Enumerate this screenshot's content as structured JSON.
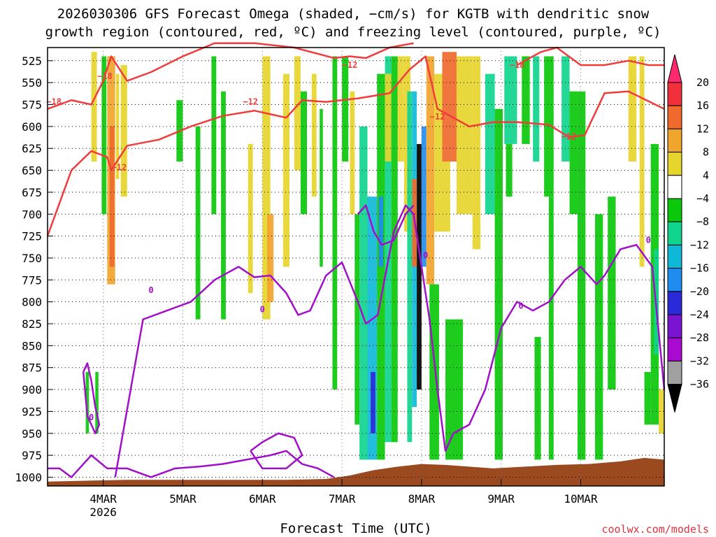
{
  "chart_data": {
    "type": "heatmap",
    "title_line1": "2026030306 GFS Forecast Omega (shaded, −cm/s) for KGTB with dendritic snow",
    "title_line2": "growth region (contoured, red, ºC) and freezing level (contoured, purple, ºC)",
    "xlabel": "Forecast Time (UTC)",
    "credit": "coolwx.com/models",
    "x_range_days": [
      0.0,
      7.75
    ],
    "x_ticks": [
      {
        "day": 0.7,
        "label": "4MAR",
        "sublabel": "2026"
      },
      {
        "day": 1.7,
        "label": "5MAR",
        "sublabel": ""
      },
      {
        "day": 2.7,
        "label": "6MAR",
        "sublabel": ""
      },
      {
        "day": 3.7,
        "label": "7MAR",
        "sublabel": ""
      },
      {
        "day": 4.7,
        "label": "8MAR",
        "sublabel": ""
      },
      {
        "day": 5.7,
        "label": "9MAR",
        "sublabel": ""
      },
      {
        "day": 6.7,
        "label": "10MAR",
        "sublabel": ""
      }
    ],
    "y_ticks": [
      525,
      550,
      575,
      600,
      625,
      650,
      675,
      700,
      725,
      750,
      775,
      800,
      825,
      850,
      875,
      900,
      925,
      950,
      975,
      1000
    ],
    "y_range_hpa": [
      510,
      1010
    ],
    "colorbar": {
      "levels": [
        20,
        16,
        12,
        8,
        4,
        -4,
        -8,
        -12,
        -16,
        -20,
        -24,
        -28,
        -32,
        -36
      ],
      "labels": [
        "20",
        "16",
        "12",
        "8",
        "4",
        "−4",
        "−8",
        "−12",
        "−16",
        "−20",
        "−24",
        "−28",
        "−32",
        "−36"
      ],
      "colors": [
        "#ff2a6e",
        "#f0303a",
        "#ef6a2c",
        "#f0a52c",
        "#e6d52c",
        "#ffffff",
        "#0ac80a",
        "#10d48e",
        "#10b8d8",
        "#1f8cf0",
        "#2a2ad8",
        "#7a14d0",
        "#a80ad0",
        "#a0a0a0",
        "#000000"
      ]
    },
    "omega_cells": [
      {
        "t0": 0.55,
        "t1": 0.62,
        "p0": 515,
        "p1": 640,
        "v": 6
      },
      {
        "t0": 0.62,
        "t1": 0.68,
        "p0": 520,
        "p1": 690,
        "v": 2
      },
      {
        "t0": 0.68,
        "t1": 0.74,
        "p0": 520,
        "p1": 700,
        "v": -6
      },
      {
        "t0": 0.75,
        "t1": 0.85,
        "p0": 520,
        "p1": 780,
        "v": 10
      },
      {
        "t0": 0.78,
        "t1": 0.84,
        "p0": 600,
        "p1": 760,
        "v": 14
      },
      {
        "t0": 0.86,
        "t1": 0.9,
        "p0": 540,
        "p1": 660,
        "v": 6
      },
      {
        "t0": 0.92,
        "t1": 1.0,
        "p0": 530,
        "p1": 680,
        "v": 6
      },
      {
        "t0": 0.48,
        "t1": 0.52,
        "p0": 880,
        "p1": 950,
        "v": -6
      },
      {
        "t0": 0.6,
        "t1": 0.64,
        "p0": 880,
        "p1": 950,
        "v": -6
      },
      {
        "t0": 1.62,
        "t1": 1.7,
        "p0": 570,
        "p1": 640,
        "v": -6
      },
      {
        "t0": 1.86,
        "t1": 1.92,
        "p0": 600,
        "p1": 820,
        "v": -6
      },
      {
        "t0": 2.06,
        "t1": 2.12,
        "p0": 520,
        "p1": 700,
        "v": -6
      },
      {
        "t0": 2.18,
        "t1": 2.24,
        "p0": 560,
        "p1": 820,
        "v": -6
      },
      {
        "t0": 2.52,
        "t1": 2.58,
        "p0": 620,
        "p1": 790,
        "v": 6
      },
      {
        "t0": 2.7,
        "t1": 2.8,
        "p0": 520,
        "p1": 820,
        "v": 6
      },
      {
        "t0": 2.76,
        "t1": 2.84,
        "p0": 700,
        "p1": 800,
        "v": 10
      },
      {
        "t0": 2.96,
        "t1": 3.04,
        "p0": 540,
        "p1": 760,
        "v": 6
      },
      {
        "t0": 3.1,
        "t1": 3.18,
        "p0": 520,
        "p1": 650,
        "v": 6
      },
      {
        "t0": 3.18,
        "t1": 3.26,
        "p0": 560,
        "p1": 700,
        "v": -6
      },
      {
        "t0": 3.32,
        "t1": 3.38,
        "p0": 540,
        "p1": 680,
        "v": 6
      },
      {
        "t0": 3.42,
        "t1": 3.46,
        "p0": 580,
        "p1": 760,
        "v": -6
      },
      {
        "t0": 3.58,
        "t1": 3.64,
        "p0": 520,
        "p1": 900,
        "v": -6
      },
      {
        "t0": 3.7,
        "t1": 3.78,
        "p0": 520,
        "p1": 640,
        "v": -6
      },
      {
        "t0": 3.8,
        "t1": 3.86,
        "p0": 560,
        "p1": 700,
        "v": 6
      },
      {
        "t0": 3.86,
        "t1": 3.92,
        "p0": 700,
        "p1": 940,
        "v": -6
      },
      {
        "t0": 3.92,
        "t1": 4.02,
        "p0": 600,
        "p1": 980,
        "v": -10
      },
      {
        "t0": 4.02,
        "t1": 4.14,
        "p0": 680,
        "p1": 980,
        "v": -14
      },
      {
        "t0": 4.06,
        "t1": 4.12,
        "p0": 880,
        "p1": 950,
        "v": -22
      },
      {
        "t0": 4.14,
        "t1": 4.24,
        "p0": 540,
        "p1": 980,
        "v": -6
      },
      {
        "t0": 4.16,
        "t1": 4.22,
        "p0": 680,
        "p1": 760,
        "v": -18
      },
      {
        "t0": 4.24,
        "t1": 4.32,
        "p0": 520,
        "p1": 960,
        "v": -10
      },
      {
        "t0": 4.24,
        "t1": 4.32,
        "p0": 540,
        "p1": 640,
        "v": 6
      },
      {
        "t0": 4.32,
        "t1": 4.4,
        "p0": 520,
        "p1": 960,
        "v": -6
      },
      {
        "t0": 4.4,
        "t1": 4.48,
        "p0": 520,
        "p1": 640,
        "v": 6
      },
      {
        "t0": 4.48,
        "t1": 4.56,
        "p0": 520,
        "p1": 720,
        "v": 6
      },
      {
        "t0": 4.52,
        "t1": 4.58,
        "p0": 560,
        "p1": 960,
        "v": -10
      },
      {
        "t0": 4.58,
        "t1": 4.64,
        "p0": 560,
        "p1": 920,
        "v": -14
      },
      {
        "t0": 4.64,
        "t1": 4.7,
        "p0": 620,
        "p1": 900,
        "v": -40
      },
      {
        "t0": 4.7,
        "t1": 4.76,
        "p0": 600,
        "p1": 760,
        "v": -18
      },
      {
        "t0": 4.58,
        "t1": 4.64,
        "p0": 660,
        "p1": 760,
        "v": 14
      },
      {
        "t0": 4.76,
        "t1": 4.86,
        "p0": 520,
        "p1": 780,
        "v": 10
      },
      {
        "t0": 4.86,
        "t1": 4.96,
        "p0": 540,
        "p1": 720,
        "v": 6
      },
      {
        "t0": 4.96,
        "t1": 5.14,
        "p0": 515,
        "p1": 640,
        "v": 14
      },
      {
        "t0": 4.96,
        "t1": 5.06,
        "p0": 640,
        "p1": 720,
        "v": 6
      },
      {
        "t0": 5.14,
        "t1": 5.34,
        "p0": 520,
        "p1": 700,
        "v": 6
      },
      {
        "t0": 5.34,
        "t1": 5.44,
        "p0": 520,
        "p1": 740,
        "v": 6
      },
      {
        "t0": 4.8,
        "t1": 4.92,
        "p0": 780,
        "p1": 980,
        "v": -6
      },
      {
        "t0": 5.0,
        "t1": 5.22,
        "p0": 820,
        "p1": 980,
        "v": -6
      },
      {
        "t0": 5.5,
        "t1": 5.62,
        "p0": 540,
        "p1": 700,
        "v": -10
      },
      {
        "t0": 5.62,
        "t1": 5.72,
        "p0": 580,
        "p1": 980,
        "v": -6
      },
      {
        "t0": 5.74,
        "t1": 5.9,
        "p0": 520,
        "p1": 620,
        "v": -10
      },
      {
        "t0": 5.76,
        "t1": 5.84,
        "p0": 620,
        "p1": 680,
        "v": -6
      },
      {
        "t0": 5.96,
        "t1": 6.06,
        "p0": 520,
        "p1": 620,
        "v": -6
      },
      {
        "t0": 6.1,
        "t1": 6.18,
        "p0": 520,
        "p1": 640,
        "v": -10
      },
      {
        "t0": 6.12,
        "t1": 6.2,
        "p0": 840,
        "p1": 980,
        "v": -6
      },
      {
        "t0": 6.24,
        "t1": 6.36,
        "p0": 520,
        "p1": 680,
        "v": -6
      },
      {
        "t0": 6.3,
        "t1": 6.36,
        "p0": 680,
        "p1": 980,
        "v": -6
      },
      {
        "t0": 6.46,
        "t1": 6.56,
        "p0": 520,
        "p1": 640,
        "v": -10
      },
      {
        "t0": 6.56,
        "t1": 6.66,
        "p0": 560,
        "p1": 700,
        "v": -6
      },
      {
        "t0": 6.66,
        "t1": 6.76,
        "p0": 560,
        "p1": 980,
        "v": -6
      },
      {
        "t0": 6.88,
        "t1": 6.98,
        "p0": 700,
        "p1": 980,
        "v": -6
      },
      {
        "t0": 7.04,
        "t1": 7.14,
        "p0": 680,
        "p1": 900,
        "v": -6
      },
      {
        "t0": 7.3,
        "t1": 7.4,
        "p0": 520,
        "p1": 640,
        "v": 6
      },
      {
        "t0": 7.44,
        "t1": 7.5,
        "p0": 520,
        "p1": 760,
        "v": 6
      },
      {
        "t0": 7.58,
        "t1": 7.68,
        "p0": 620,
        "p1": 940,
        "v": -6
      },
      {
        "t0": 7.62,
        "t1": 7.68,
        "p0": 740,
        "p1": 860,
        "v": -10
      },
      {
        "t0": 7.5,
        "t1": 7.58,
        "p0": 880,
        "p1": 940,
        "v": -6
      },
      {
        "t0": 7.68,
        "t1": 7.75,
        "p0": 900,
        "p1": 950,
        "v": 6
      }
    ],
    "series_red": [
      {
        "name": "dgz -18/-12 lower",
        "values_t": [
          0.0,
          0.3,
          0.55,
          0.75,
          0.8,
          1.0,
          1.4,
          1.8,
          2.2,
          2.6,
          3.0,
          3.2,
          3.5,
          3.9,
          4.3,
          4.55,
          4.75,
          4.9,
          5.3,
          5.6,
          5.9,
          6.3,
          6.55,
          6.75,
          7.0,
          7.3,
          7.75
        ],
        "values_p": [
          725,
          650,
          628,
          635,
          650,
          622,
          615,
          600,
          588,
          582,
          590,
          570,
          572,
          568,
          562,
          535,
          520,
          580,
          600,
          595,
          595,
          598,
          612,
          610,
          562,
          560,
          580
        ]
      },
      {
        "name": "dgz upper",
        "values_t": [
          0.0,
          0.3,
          0.55,
          0.7,
          0.8,
          1.0,
          1.3,
          1.7,
          2.1,
          2.6,
          3.1,
          3.6,
          3.8,
          4.0,
          4.3,
          4.6
        ],
        "values_p": [
          580,
          570,
          575,
          548,
          520,
          548,
          538,
          520,
          505,
          505,
          510,
          522,
          520,
          522,
          510,
          505
        ]
      },
      {
        "name": "dgz right upper",
        "values_t": [
          5.9,
          6.2,
          6.4,
          6.7,
          7.0,
          7.3,
          7.55,
          7.75
        ],
        "values_p": [
          530,
          515,
          510,
          530,
          530,
          525,
          530,
          530
        ]
      }
    ],
    "series_purple": [
      {
        "name": "freezing level",
        "values_t": [
          0.85,
          1.2,
          1.5,
          1.8,
          2.1,
          2.4,
          2.6,
          2.8,
          3.0,
          3.15,
          3.3,
          3.5,
          3.7,
          3.9,
          4.0,
          4.15,
          4.35,
          4.5,
          4.6,
          4.7,
          4.8,
          4.9,
          5.0,
          5.1,
          5.3,
          5.5,
          5.7,
          5.9,
          6.1,
          6.3,
          6.5,
          6.7,
          6.9,
          7.0,
          7.2,
          7.4,
          7.6,
          7.75
        ],
        "values_p": [
          1000,
          820,
          810,
          800,
          775,
          760,
          772,
          770,
          790,
          815,
          810,
          770,
          755,
          800,
          825,
          815,
          720,
          690,
          700,
          760,
          820,
          900,
          970,
          950,
          940,
          900,
          830,
          800,
          810,
          800,
          775,
          760,
          780,
          770,
          740,
          735,
          760,
          900
        ]
      },
      {
        "name": "freezing level pocket",
        "values_t": [
          3.9,
          4.0,
          4.1,
          4.2,
          4.35,
          4.5,
          4.6
        ],
        "values_p": [
          700,
          690,
          720,
          735,
          730,
          700,
          690
        ]
      },
      {
        "name": "low level isotherm",
        "values_t": [
          0.0,
          0.15,
          0.3,
          0.55,
          0.75,
          1.0,
          1.3,
          1.6,
          1.9,
          2.2,
          2.5,
          2.8,
          3.0,
          3.2,
          3.4,
          3.6
        ],
        "values_p": [
          990,
          990,
          1000,
          975,
          990,
          990,
          1000,
          990,
          988,
          985,
          980,
          975,
          970,
          985,
          990,
          1000
        ]
      },
      {
        "name": "pocket a",
        "values_t": [
          0.45,
          0.5,
          0.55,
          0.6,
          0.65,
          0.6,
          0.5,
          0.45
        ],
        "values_p": [
          880,
          870,
          890,
          920,
          940,
          950,
          930,
          880
        ]
      },
      {
        "name": "pocket b",
        "values_t": [
          2.55,
          2.7,
          2.9,
          3.1,
          3.2,
          3.0,
          2.7,
          2.55
        ],
        "values_p": [
          970,
          960,
          950,
          955,
          975,
          990,
          990,
          970
        ]
      }
    ],
    "contour_labels": [
      {
        "text": "−18",
        "t": 0.08,
        "p": 575,
        "color": "#f03c3c"
      },
      {
        "text": "−18",
        "t": 0.72,
        "p": 546,
        "color": "#f03c3c"
      },
      {
        "text": "−12",
        "t": 0.9,
        "p": 650,
        "color": "#f03c3c"
      },
      {
        "text": "−12",
        "t": 2.55,
        "p": 575,
        "color": "#f03c3c"
      },
      {
        "text": "−12",
        "t": 3.8,
        "p": 533,
        "color": "#f03c3c"
      },
      {
        "text": "−12",
        "t": 4.9,
        "p": 592,
        "color": "#f03c3c"
      },
      {
        "text": "−12",
        "t": 6.55,
        "p": 615,
        "color": "#f03c3c"
      },
      {
        "text": "−18",
        "t": 5.9,
        "p": 533,
        "color": "#f03c3c"
      },
      {
        "text": "0",
        "t": 0.55,
        "p": 935,
        "color": "#a010c8"
      },
      {
        "text": "0",
        "t": 1.3,
        "p": 790,
        "color": "#a010c8"
      },
      {
        "text": "0",
        "t": 2.7,
        "p": 812,
        "color": "#a010c8"
      },
      {
        "text": "0",
        "t": 4.75,
        "p": 750,
        "color": "#a010c8"
      },
      {
        "text": "0",
        "t": 5.95,
        "p": 808,
        "color": "#a010c8"
      },
      {
        "text": "0",
        "t": 7.55,
        "p": 733,
        "color": "#a010c8"
      }
    ],
    "terrain": {
      "values_t": [
        0.0,
        1.0,
        2.0,
        3.0,
        3.5,
        3.8,
        4.1,
        4.4,
        4.7,
        5.0,
        5.3,
        5.6,
        6.0,
        6.4,
        6.8,
        7.2,
        7.5,
        7.75
      ],
      "values_p": [
        1005,
        1003,
        1003,
        1003,
        1002,
        998,
        992,
        988,
        985,
        986,
        988,
        990,
        988,
        986,
        985,
        982,
        978,
        980
      ]
    }
  }
}
